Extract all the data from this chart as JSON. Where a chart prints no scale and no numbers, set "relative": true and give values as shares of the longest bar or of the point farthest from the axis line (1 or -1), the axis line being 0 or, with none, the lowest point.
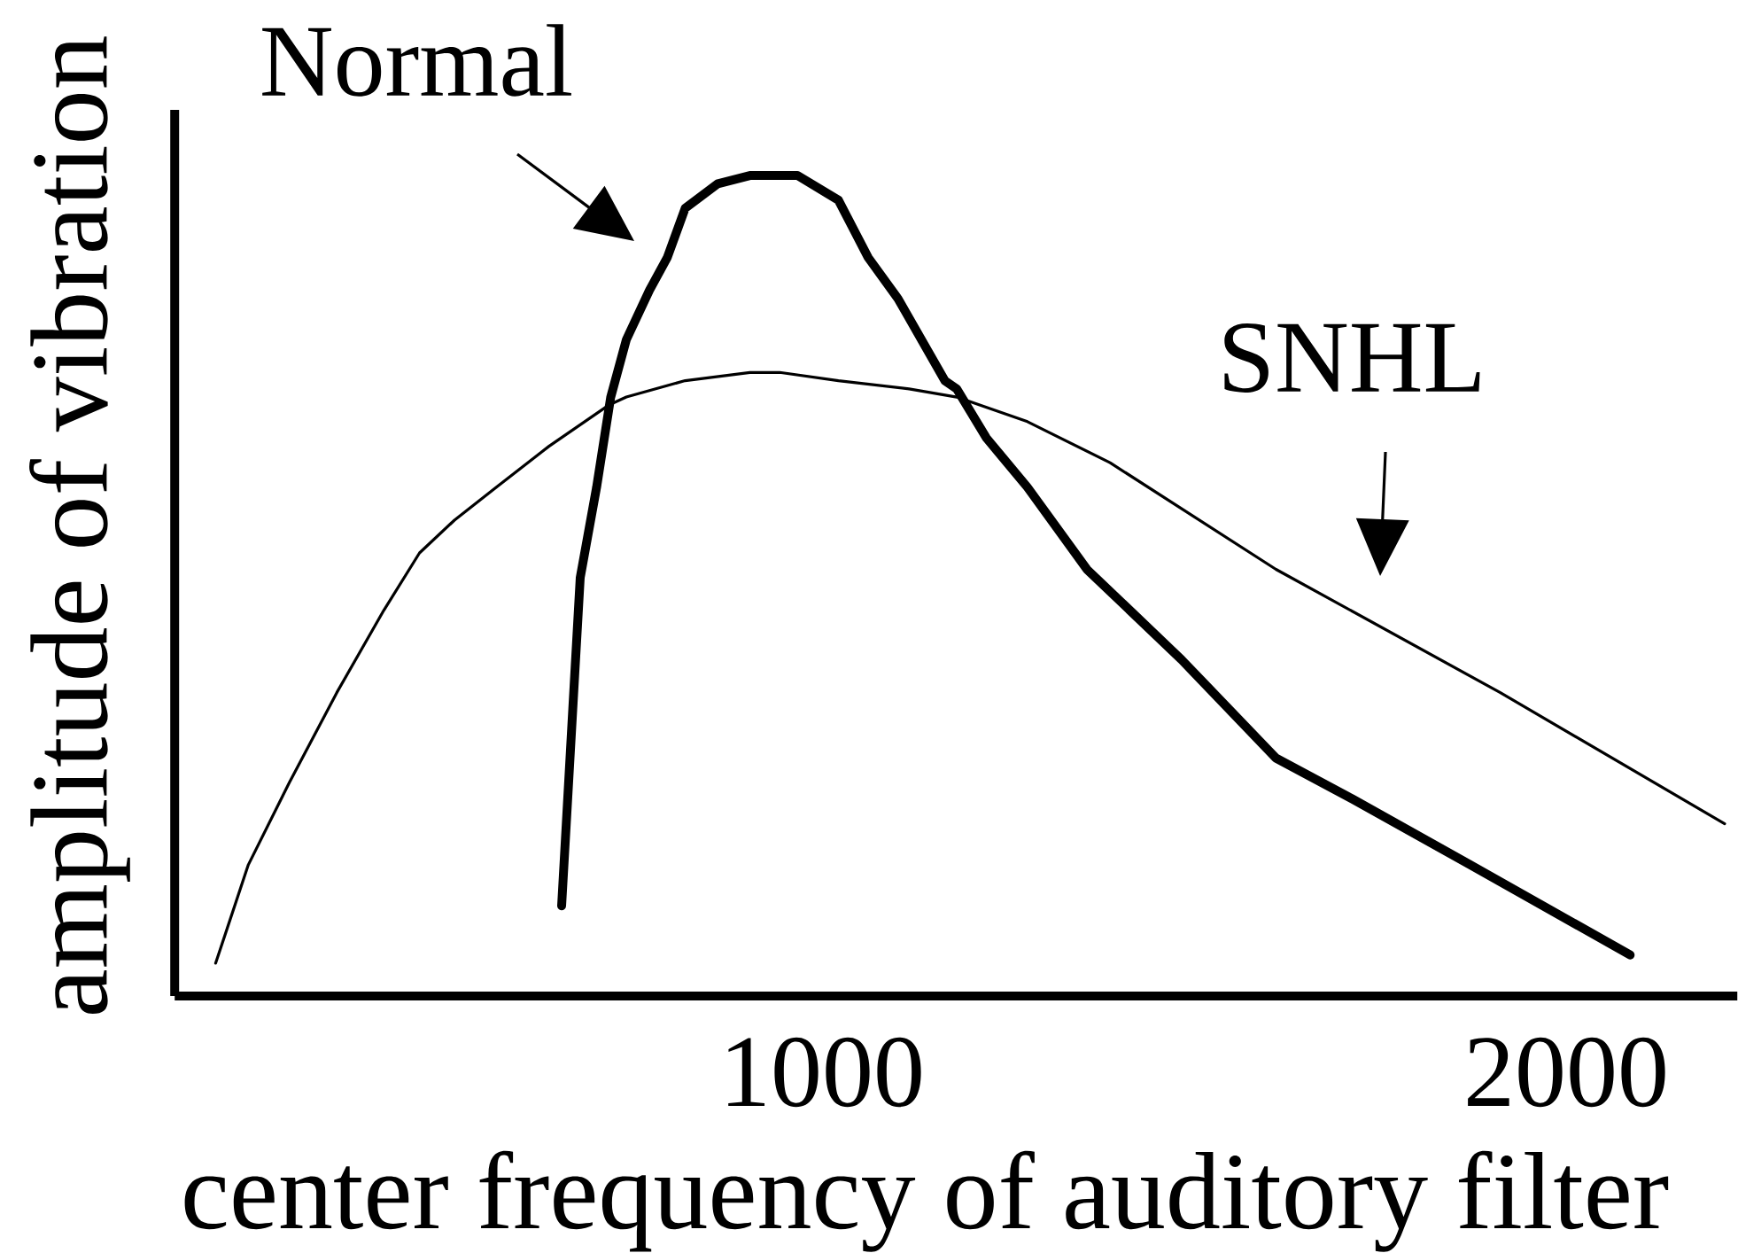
{
  "chart_data": {
    "type": "line",
    "xlabel": "center frequency of auditory filter",
    "ylabel": "amplitude of vibration",
    "relative": true,
    "xlim": [
      130,
      2230
    ],
    "xticks": [
      1000,
      2000
    ],
    "tick_labels": "x",
    "series": [
      {
        "name": "Normal",
        "color": "#000000",
        "x": [
          650,
          665,
          675,
          697,
          716,
          737,
          768,
          792,
          816,
          860,
          903,
          967,
          1022,
          1062,
          1102,
          1165,
          1181,
          1221,
          1276,
          1356,
          1483,
          1610,
          1713,
          1871,
          2086
        ],
        "values": [
          0.11,
          0.35,
          0.51,
          0.62,
          0.73,
          0.8,
          0.86,
          0.9,
          0.96,
          0.99,
          1.0,
          1.0,
          0.97,
          0.9,
          0.85,
          0.75,
          0.74,
          0.68,
          0.62,
          0.52,
          0.41,
          0.29,
          0.24,
          0.16,
          0.05
        ]
      },
      {
        "name": "SNHL",
        "color": "#000000",
        "x": [
          185,
          229,
          284,
          348,
          411,
          459,
          506,
          562,
          633,
          713,
          737,
          816,
          903,
          943,
          1022,
          1117,
          1181,
          1276,
          1387,
          1610,
          1911,
          2213
        ],
        "values": [
          0.04,
          0.16,
          0.26,
          0.37,
          0.47,
          0.54,
          0.58,
          0.62,
          0.67,
          0.72,
          0.73,
          0.75,
          0.76,
          0.76,
          0.75,
          0.74,
          0.73,
          0.7,
          0.65,
          0.52,
          0.37,
          0.21
        ]
      }
    ]
  }
}
